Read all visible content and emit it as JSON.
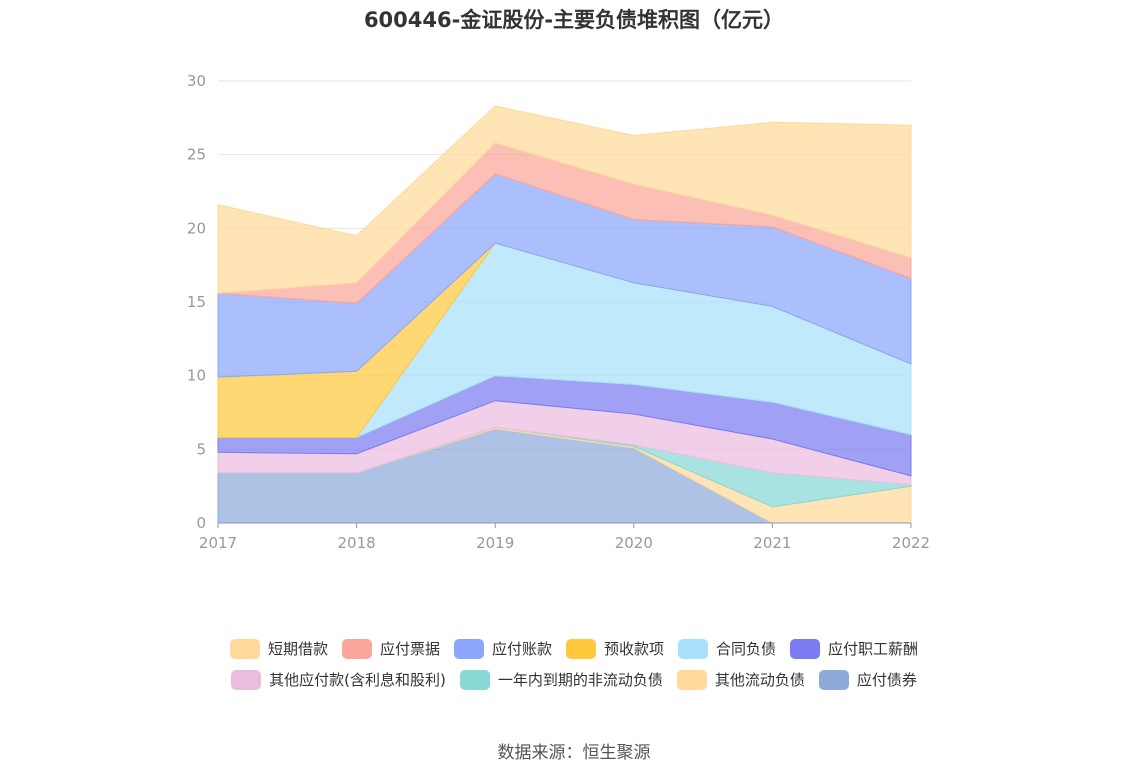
{
  "chart_data": {
    "type": "area",
    "stacked": true,
    "title": "600446-金证股份-主要负债堆积图（亿元）",
    "x": [
      "2017",
      "2018",
      "2019",
      "2020",
      "2021",
      "2022"
    ],
    "ylim": [
      0,
      30
    ],
    "yticks": [
      "0",
      "5",
      "10",
      "15",
      "20",
      "25",
      "30"
    ],
    "grid": true,
    "legend_position": "bottom",
    "series": [
      {
        "name": "应付债券",
        "color": "#8eaadb",
        "values": [
          3.4,
          3.4,
          6.4,
          5.1,
          0,
          0
        ]
      },
      {
        "name": "其他流动负债",
        "color": "#ffd99a",
        "values": [
          0,
          0,
          0.1,
          0.1,
          1.1,
          2.5
        ]
      },
      {
        "name": "一年内到期的非流动负债",
        "color": "#88d8d6",
        "values": [
          0,
          0,
          0,
          0.1,
          2.3,
          0.1
        ]
      },
      {
        "name": "其他应付款(含利息和股利)",
        "color": "#ecbcdf",
        "values": [
          1.4,
          1.3,
          1.8,
          2.1,
          2.3,
          0.6
        ]
      },
      {
        "name": "应付职工薪酬",
        "color": "#7b7bf1",
        "values": [
          1.0,
          1.1,
          1.7,
          2.0,
          2.5,
          2.8
        ]
      },
      {
        "name": "合同负债",
        "color": "#a8e0fa",
        "values": [
          0,
          0,
          9.0,
          6.9,
          6.5,
          4.8
        ]
      },
      {
        "name": "预收款项",
        "color": "#ffc83d",
        "values": [
          4.1,
          4.5,
          0,
          0,
          0,
          0
        ]
      },
      {
        "name": "应付账款",
        "color": "#8ba6fb",
        "values": [
          5.7,
          4.6,
          4.7,
          4.3,
          5.4,
          5.8
        ]
      },
      {
        "name": "应付票据",
        "color": "#fba69a",
        "values": [
          0,
          1.4,
          2.1,
          2.4,
          0.8,
          1.4
        ]
      },
      {
        "name": "短期借款",
        "color": "#ffd99a",
        "values": [
          6.0,
          3.2,
          2.5,
          3.3,
          6.3,
          9.0
        ]
      }
    ],
    "legend": [
      [
        "短期借款",
        "应付票据",
        "应付账款",
        "预收款项",
        "合同负债",
        "应付职工薪酬"
      ],
      [
        "其他应付款(含利息和股利)",
        "一年内到期的非流动负债",
        "其他流动负债",
        "应付债券"
      ]
    ]
  },
  "source": "数据来源：恒生聚源"
}
